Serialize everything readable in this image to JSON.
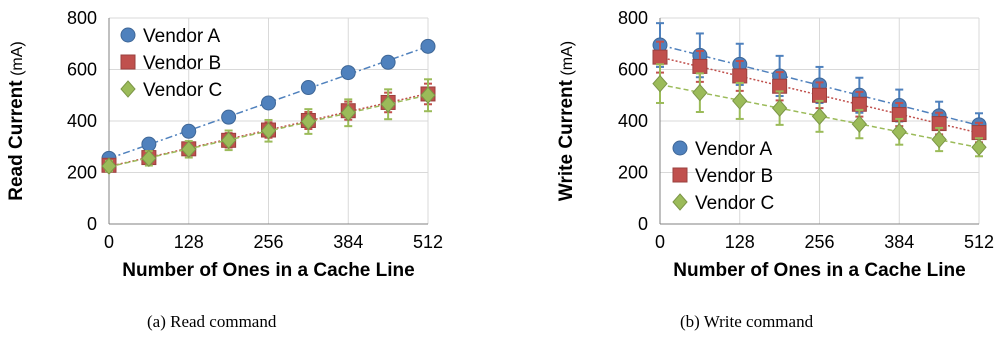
{
  "chart_data": [
    {
      "type": "scatter",
      "ylabel_bold": "Read Current",
      "ylabel_unit": " (mA)",
      "xlabel": "Number of Ones in a Cache Line",
      "xlim": [
        0,
        512
      ],
      "ylim": [
        0,
        800
      ],
      "xticks": [
        "0",
        "128",
        "256",
        "384",
        "512"
      ],
      "yticks": [
        "0",
        "200",
        "400",
        "600",
        "800"
      ],
      "grid": true,
      "legend_position": "top-left",
      "caption": "(a) Read command",
      "x": [
        0,
        64,
        128,
        192,
        256,
        320,
        384,
        448,
        512
      ],
      "series": [
        {
          "name": "Vendor A",
          "color": "#4f81bd",
          "marker": "circle",
          "line": "dashdot",
          "values": [
            255,
            310,
            360,
            415,
            470,
            530,
            588,
            628,
            690
          ],
          "errors": [
            12,
            12,
            12,
            12,
            12,
            12,
            12,
            12,
            12
          ]
        },
        {
          "name": "Vendor B",
          "color": "#c0504d",
          "marker": "square",
          "line": "dotted",
          "values": [
            228,
            258,
            292,
            325,
            365,
            402,
            440,
            472,
            505
          ],
          "errors": [
            15,
            20,
            25,
            28,
            30,
            33,
            35,
            38,
            40
          ]
        },
        {
          "name": "Vendor C",
          "color": "#9bbb59",
          "marker": "diamond",
          "line": "dashed",
          "values": [
            225,
            255,
            290,
            325,
            362,
            398,
            432,
            465,
            500
          ],
          "errors": [
            20,
            28,
            32,
            38,
            42,
            48,
            52,
            58,
            62
          ]
        }
      ]
    },
    {
      "type": "scatter",
      "ylabel_bold": "Write Current",
      "ylabel_unit": " (mA)",
      "xlabel": "Number of Ones in a Cache Line",
      "xlim": [
        0,
        512
      ],
      "ylim": [
        0,
        800
      ],
      "xticks": [
        "0",
        "128",
        "256",
        "384",
        "512"
      ],
      "yticks": [
        "0",
        "200",
        "400",
        "600",
        "800"
      ],
      "grid": true,
      "legend_position": "bottom-left",
      "caption": "(b) Write command",
      "x": [
        0,
        64,
        128,
        192,
        256,
        320,
        384,
        448,
        512
      ],
      "series": [
        {
          "name": "Vendor A",
          "color": "#4f81bd",
          "marker": "circle",
          "line": "dashdot",
          "values": [
            695,
            655,
            620,
            575,
            540,
            500,
            460,
            420,
            385
          ],
          "errors": [
            85,
            85,
            80,
            78,
            70,
            68,
            62,
            55,
            45
          ]
        },
        {
          "name": "Vendor B",
          "color": "#c0504d",
          "marker": "square",
          "line": "dotted",
          "values": [
            648,
            612,
            575,
            535,
            500,
            465,
            425,
            390,
            355
          ],
          "errors": [
            60,
            60,
            58,
            55,
            50,
            48,
            45,
            42,
            38
          ]
        },
        {
          "name": "Vendor C",
          "color": "#9bbb59",
          "marker": "diamond",
          "line": "dashed",
          "values": [
            545,
            510,
            478,
            450,
            418,
            388,
            358,
            328,
            298
          ],
          "errors": [
            75,
            75,
            70,
            65,
            60,
            55,
            50,
            45,
            35
          ]
        }
      ]
    }
  ]
}
